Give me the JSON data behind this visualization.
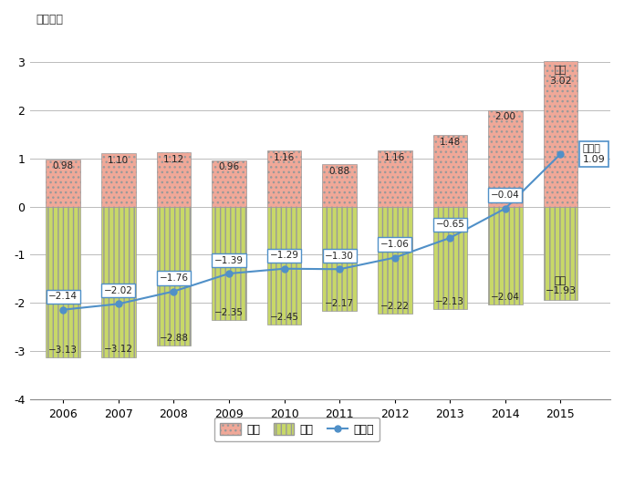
{
  "years": [
    2006,
    2007,
    2008,
    2009,
    2010,
    2011,
    2012,
    2013,
    2014,
    2015
  ],
  "receive": [
    0.98,
    1.1,
    1.12,
    0.96,
    1.16,
    0.88,
    1.16,
    1.48,
    2.0,
    3.02
  ],
  "payment": [
    -3.13,
    -3.12,
    -2.88,
    -2.35,
    -2.45,
    -2.17,
    -2.22,
    -2.13,
    -2.04,
    -1.93
  ],
  "net": [
    -2.14,
    -2.02,
    -1.76,
    -1.39,
    -1.29,
    -1.3,
    -1.06,
    -0.65,
    -0.04,
    1.09
  ],
  "ylabel": "（兆円）",
  "ylim": [
    -4,
    3.6
  ],
  "yticks": [
    -4,
    -3,
    -2,
    -1,
    0,
    1,
    2,
    3
  ],
  "receive_color": "#f0a898",
  "payment_color": "#c8d868",
  "net_color": "#5090c8",
  "bar_edge_color": "#999999",
  "background_color": "#ffffff",
  "legend_receive": "受取",
  "legend_payment": "支払",
  "legend_net": "ネット",
  "bar_width": 0.62
}
